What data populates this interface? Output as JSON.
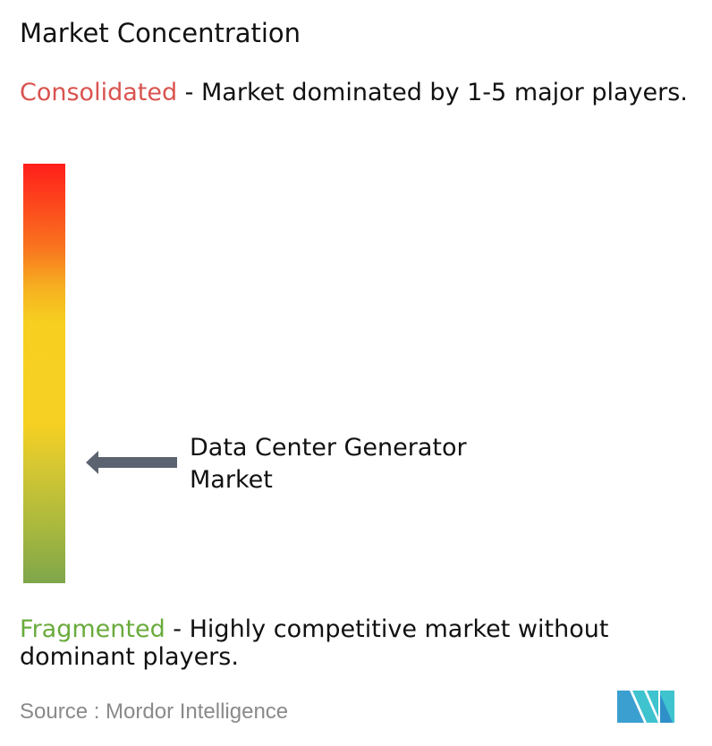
{
  "title": "Market Concentration",
  "consolidated": {
    "label": "Consolidated",
    "description": " - Market dominated by 1-5 major players."
  },
  "fragmented": {
    "label": "Fragmented",
    "description": " - Highly competitive market without dominant players."
  },
  "market_label": "Data Center Generator Market",
  "source": "Source :  Mordor Intelligence",
  "logo_text": "Mordor Intelligence",
  "colors": {
    "consolidated": "#d9534f",
    "fragmented": "#6aab3c",
    "arrow": "#5c6370",
    "gradient_top": "#ff1e1a",
    "gradient_mid": "#f6d022",
    "gradient_bottom": "#7ea64a"
  }
}
